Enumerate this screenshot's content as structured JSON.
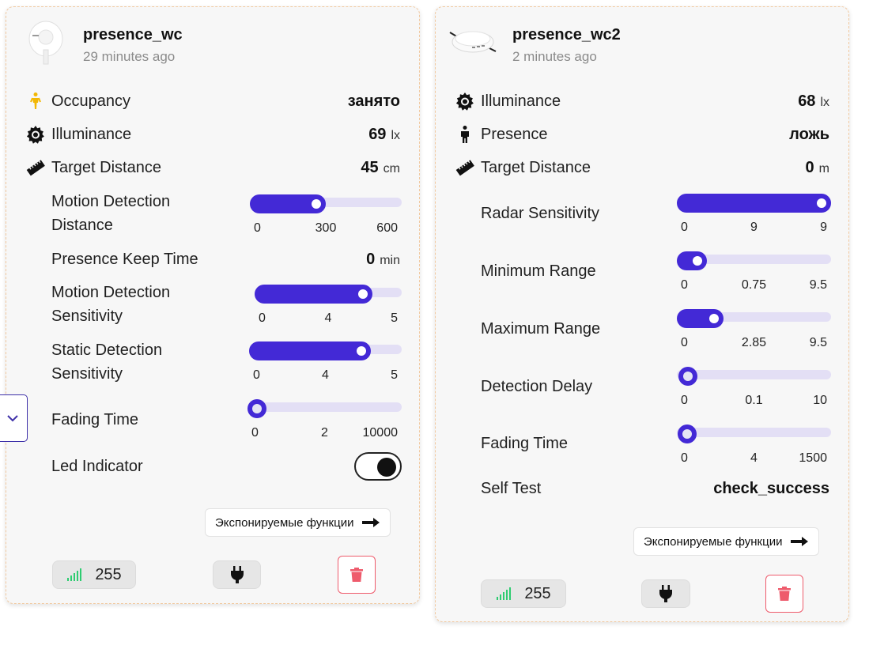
{
  "card1": {
    "name": "presence_wc",
    "time": "29 minutes ago",
    "stats": [
      {
        "icon": "person-walking-icon",
        "label": "Occupancy",
        "value": "занято",
        "unit": ""
      },
      {
        "icon": "sun-gear-icon",
        "label": "Illuminance",
        "value": "69",
        "unit": "lx"
      },
      {
        "icon": "ruler-icon",
        "label": "Target Distance",
        "value": "45",
        "unit": "cm"
      }
    ],
    "sliders": [
      {
        "label_line1": "Motion Detection",
        "label_line2": "Distance",
        "min": "0",
        "current": "300",
        "max": "600",
        "fraction": 0.5
      },
      {
        "label_line1": "Motion Detection",
        "label_line2": "Sensitivity",
        "min": "0",
        "current": "4",
        "max": "5",
        "fraction": 0.8
      },
      {
        "label_line1": "Static Detection",
        "label_line2": "Sensitivity",
        "min": "0",
        "current": "4",
        "max": "5",
        "fraction": 0.8
      },
      {
        "label_line1": "Fading Time",
        "label_line2": "",
        "min": "0",
        "current": "2",
        "max": "10000",
        "fraction": 0.0002
      }
    ],
    "keep_time": {
      "label": "Presence Keep Time",
      "value": "0",
      "unit": "min"
    },
    "led": {
      "label": "Led Indicator",
      "on": true
    },
    "expose_label": "Экспонируемые функции",
    "lqi": "255"
  },
  "card2": {
    "name": "presence_wc2",
    "time": "2 minutes ago",
    "stats": [
      {
        "icon": "sun-gear-icon",
        "label": "Illuminance",
        "value": "68",
        "unit": "lx"
      },
      {
        "icon": "person-standing-icon",
        "label": "Presence",
        "value": "ложь",
        "unit": ""
      },
      {
        "icon": "ruler-icon",
        "label": "Target Distance",
        "value": "0",
        "unit": "m"
      }
    ],
    "sliders": [
      {
        "label": "Radar Sensitivity",
        "min": "0",
        "current": "9",
        "max": "9",
        "fraction": 1.0
      },
      {
        "label": "Minimum Range",
        "min": "0",
        "current": "0.75",
        "max": "9.5",
        "fraction": 0.079
      },
      {
        "label": "Maximum Range",
        "min": "0",
        "current": "2.85",
        "max": "9.5",
        "fraction": 0.3
      },
      {
        "label": "Detection Delay",
        "min": "0",
        "current": "0.1",
        "max": "10",
        "fraction": 0.01
      },
      {
        "label": "Fading Time",
        "min": "0",
        "current": "4",
        "max": "1500",
        "fraction": 0.003
      }
    ],
    "self_test": {
      "label": "Self Test",
      "value": "check_success"
    },
    "expose_label": "Экспонируемые функции",
    "lqi": "255"
  },
  "colors": {
    "accent": "#4329d6",
    "track": "#e3dff5",
    "signal": "#2ecc71",
    "delete": "#ee5b6c",
    "occupancy_icon": "#f2b705"
  }
}
